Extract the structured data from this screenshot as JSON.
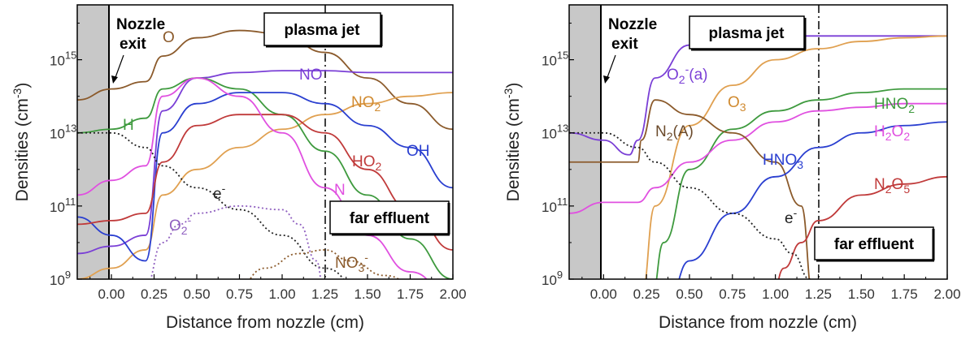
{
  "chart_data": [
    {
      "type": "line",
      "panel": "left",
      "xlabel": "Distance from nozzle (cm)",
      "ylabel": "Densities (cm",
      "ylabel_sup": "-3",
      "ylabel_close": ")",
      "xlim": [
        -0.2,
        2.0
      ],
      "ylim_log10": [
        9,
        16.5
      ],
      "log_y": true,
      "xticks": [
        "0.00",
        "0.25",
        "0.50",
        "0.75",
        "1.00",
        "1.25",
        "1.50",
        "1.75",
        "2.00"
      ],
      "yticks": [
        {
          "base": "10",
          "exp": "9"
        },
        {
          "base": "10",
          "exp": "11"
        },
        {
          "base": "10",
          "exp": "13"
        },
        {
          "base": "10",
          "exp": "15"
        }
      ],
      "annotations": {
        "nozzle": [
          "Nozzle",
          "exit"
        ],
        "plasma_jet": "plasma jet",
        "far_effluent": "far effluent"
      },
      "series": [
        {
          "label": "O",
          "color": "#8B5A2B",
          "dash": "",
          "x": [
            -0.2,
            0.0,
            0.2,
            0.3,
            0.5,
            0.75,
            1.0,
            1.25,
            1.5,
            1.75,
            2.0
          ],
          "log10y": [
            13.9,
            14.2,
            14.4,
            15.1,
            15.6,
            15.8,
            15.7,
            15.2,
            14.5,
            13.8,
            13.1
          ]
        },
        {
          "label": "NO",
          "color": "#7A3FD6",
          "dash": "",
          "x": [
            -0.2,
            0.0,
            0.2,
            0.3,
            0.5,
            0.75,
            1.0,
            1.25,
            1.5,
            1.75,
            2.0
          ],
          "log10y": [
            9.7,
            9.9,
            10.2,
            13.6,
            14.5,
            14.65,
            14.7,
            14.7,
            14.65,
            14.65,
            14.65
          ]
        },
        {
          "label": "NO2",
          "color": "#E0A050",
          "dash": "",
          "x": [
            -0.2,
            0.0,
            0.2,
            0.3,
            0.5,
            0.75,
            1.0,
            1.25,
            1.5,
            1.75,
            2.0
          ],
          "log10y": [
            9.0,
            9.3,
            9.8,
            11.3,
            12.0,
            12.6,
            13.1,
            13.5,
            13.8,
            14.0,
            14.1
          ]
        },
        {
          "label": "H",
          "color": "#3E9A3E",
          "dash": "",
          "x": [
            -0.2,
            0.0,
            0.2,
            0.3,
            0.5,
            0.75,
            1.0,
            1.25,
            1.5,
            1.75,
            2.0
          ],
          "log10y": [
            13.0,
            13.1,
            13.4,
            14.2,
            14.5,
            14.2,
            13.5,
            12.5,
            11.3,
            10.1,
            9.0
          ]
        },
        {
          "label": "OH",
          "color": "#2A3FD0",
          "dash": "",
          "x": [
            -0.2,
            0.0,
            0.2,
            0.3,
            0.5,
            0.75,
            1.0,
            1.25,
            1.5,
            1.75,
            2.0
          ],
          "log10y": [
            10.7,
            10.2,
            9.5,
            13.0,
            13.8,
            14.1,
            14.1,
            13.8,
            13.2,
            12.6,
            11.5
          ]
        },
        {
          "label": "HO2",
          "color": "#C03A3A",
          "dash": "",
          "x": [
            -0.2,
            0.0,
            0.2,
            0.3,
            0.5,
            0.75,
            1.0,
            1.25,
            1.5,
            1.75,
            2.0
          ],
          "log10y": [
            10.5,
            10.6,
            10.8,
            12.2,
            13.2,
            13.5,
            13.5,
            13.0,
            12.0,
            10.9,
            9.8
          ]
        },
        {
          "label": "N",
          "color": "#E050E0",
          "dash": "",
          "x": [
            -0.2,
            0.0,
            0.2,
            0.3,
            0.5,
            0.75,
            1.0,
            1.25,
            1.5,
            1.75,
            2.0
          ],
          "log10y": [
            11.3,
            11.7,
            12.1,
            14.0,
            14.5,
            14.0,
            13.0,
            11.5,
            10.2,
            9.2,
            8.5
          ]
        },
        {
          "label": "e-",
          "color": "#222222",
          "dash": "2,3",
          "x": [
            -0.2,
            0.0,
            0.2,
            0.3,
            0.5,
            0.75,
            1.0,
            1.25,
            1.5
          ],
          "log10y": [
            13.0,
            13.0,
            12.6,
            12.1,
            11.5,
            10.9,
            10.2,
            9.3,
            8.5
          ]
        },
        {
          "label": "O2-",
          "color": "#9060C0",
          "dash": "2,3",
          "x": [
            0.2,
            0.3,
            0.4,
            0.5,
            0.75,
            1.0,
            1.1,
            1.2,
            1.25
          ],
          "log10y": [
            8.8,
            10.0,
            10.5,
            10.8,
            11.0,
            10.9,
            10.5,
            9.5,
            8.5
          ]
        },
        {
          "label": "NO3-",
          "color": "#8B5A2B",
          "dash": "2,3",
          "x": [
            0.7,
            0.9,
            1.1,
            1.25,
            1.4,
            1.6,
            1.8,
            2.0
          ],
          "log10y": [
            8.5,
            9.3,
            9.7,
            9.8,
            9.5,
            9.1,
            8.8,
            8.5
          ]
        }
      ]
    },
    {
      "type": "line",
      "panel": "right",
      "xlabel": "Distance from nozzle (cm)",
      "ylabel": "Densities (cm",
      "ylabel_sup": "-3",
      "ylabel_close": ")",
      "xlim": [
        -0.2,
        2.0
      ],
      "ylim_log10": [
        9,
        16.5
      ],
      "log_y": true,
      "xticks": [
        "0.00",
        "0.25",
        "0.50",
        "0.75",
        "1.00",
        "1.25",
        "1.50",
        "1.75",
        "2.00"
      ],
      "yticks": [
        {
          "base": "10",
          "exp": "9"
        },
        {
          "base": "10",
          "exp": "11"
        },
        {
          "base": "10",
          "exp": "13"
        },
        {
          "base": "10",
          "exp": "15"
        }
      ],
      "annotations": {
        "nozzle": [
          "Nozzle",
          "exit"
        ],
        "plasma_jet": "plasma jet",
        "far_effluent": "far effluent"
      },
      "series": [
        {
          "label": "O2-(a)",
          "color": "#7A3FD6",
          "dash": "",
          "x": [
            -0.2,
            0.0,
            0.15,
            0.2,
            0.3,
            0.5,
            0.75,
            1.0,
            1.25,
            1.5,
            1.75,
            2.0
          ],
          "log10y": [
            13.0,
            12.8,
            12.4,
            12.8,
            14.5,
            15.4,
            15.6,
            15.65,
            15.65,
            15.65,
            15.65,
            15.65
          ]
        },
        {
          "label": "O3",
          "color": "#E0A050",
          "dash": "",
          "x": [
            0.22,
            0.3,
            0.5,
            0.75,
            1.0,
            1.25,
            1.5,
            1.75,
            2.0
          ],
          "log10y": [
            8.5,
            11.0,
            13.2,
            14.3,
            15.0,
            15.3,
            15.5,
            15.6,
            15.65
          ]
        },
        {
          "label": "HNO2",
          "color": "#3E9A3E",
          "dash": "",
          "x": [
            0.28,
            0.35,
            0.5,
            0.75,
            1.0,
            1.25,
            1.5,
            1.75,
            2.0
          ],
          "log10y": [
            8.5,
            10.0,
            12.0,
            13.1,
            13.6,
            13.9,
            14.1,
            14.2,
            14.2
          ]
        },
        {
          "label": "H2O2",
          "color": "#E050E0",
          "dash": "",
          "x": [
            -0.2,
            0.0,
            0.2,
            0.3,
            0.5,
            0.75,
            1.0,
            1.25,
            1.5,
            1.75,
            2.0
          ],
          "log10y": [
            10.8,
            11.1,
            11.1,
            11.5,
            12.2,
            12.8,
            13.3,
            13.6,
            13.7,
            13.8,
            13.8
          ]
        },
        {
          "label": "N2(A)",
          "color": "#8B5A2B",
          "dash": "",
          "x": [
            -0.2,
            0.0,
            0.2,
            0.22,
            0.3,
            0.5,
            0.75,
            1.0,
            1.15,
            1.22
          ],
          "log10y": [
            12.2,
            12.2,
            12.2,
            12.8,
            13.9,
            13.5,
            13.0,
            12.2,
            11.0,
            8.5
          ]
        },
        {
          "label": "HNO3",
          "color": "#2A3FD0",
          "dash": "",
          "x": [
            0.38,
            0.5,
            0.75,
            1.0,
            1.25,
            1.5,
            1.75,
            2.0
          ],
          "log10y": [
            8.5,
            9.5,
            10.8,
            11.8,
            12.6,
            13.0,
            13.2,
            13.3
          ]
        },
        {
          "label": "N2O5",
          "color": "#C03A3A",
          "dash": "",
          "x": [
            0.98,
            1.05,
            1.15,
            1.25,
            1.5,
            1.75,
            2.0
          ],
          "log10y": [
            8.5,
            9.3,
            10.0,
            10.6,
            11.3,
            11.6,
            11.8
          ]
        },
        {
          "label": "e-",
          "color": "#222222",
          "dash": "2,3",
          "x": [
            -0.2,
            0.0,
            0.2,
            0.3,
            0.5,
            0.75,
            1.0,
            1.1,
            1.2,
            1.25
          ],
          "log10y": [
            13.0,
            13.0,
            12.6,
            12.2,
            11.5,
            10.8,
            10.1,
            9.7,
            9.0,
            8.5
          ]
        }
      ]
    }
  ],
  "labels_left": {
    "O": "O",
    "NO": "NO",
    "NO2_main": "NO",
    "NO2_sub": "2",
    "H": "H",
    "OH": "OH",
    "HO2_main": "HO",
    "HO2_sub": "2",
    "N": "N",
    "e_main": "e",
    "e_sup": "-",
    "O2_main": "O",
    "O2_sub": "2",
    "O2_sup": "-",
    "NO3_main": "NO",
    "NO3_sub": "3",
    "NO3_sup": "-"
  },
  "labels_right": {
    "O2a_main": "O",
    "O2a_sub": "2",
    "O2a_sup": "-",
    "O2a_tail": "(a)",
    "O3_main": "O",
    "O3_sub": "3",
    "HNO2_main": "HNO",
    "HNO2_sub": "2",
    "H2O2_a": "H",
    "H2O2_b": "2",
    "H2O2_c": "O",
    "H2O2_d": "2",
    "N2A_a": "N",
    "N2A_b": "2",
    "N2A_c": "(A)",
    "HNO3_main": "HNO",
    "HNO3_sub": "3",
    "N2O5_a": "N",
    "N2O5_b": "2",
    "N2O5_c": "O",
    "N2O5_d": "5",
    "e_main": "e",
    "e_sup": "-"
  }
}
